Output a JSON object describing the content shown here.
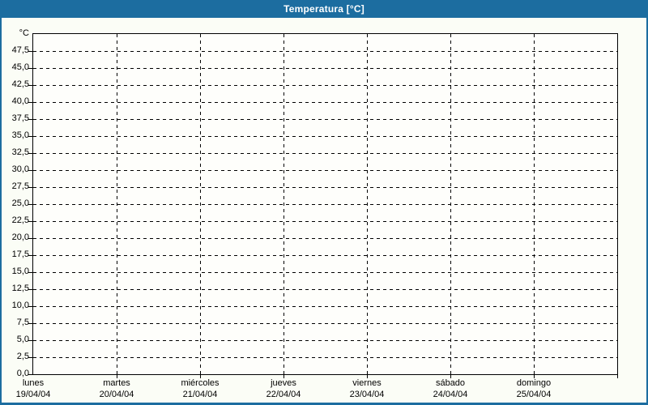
{
  "window": {
    "title": "Temperatura [°C]"
  },
  "colors": {
    "titlebar": "#1c6da0",
    "frame_border": "#1c6da0",
    "page_background": "#fbfdf6",
    "plot_background": "#fefefb",
    "grid": "#000000",
    "text": "#000000",
    "title_text": "#ffffff"
  },
  "chart_data": {
    "type": "line",
    "title": "Temperatura [°C]",
    "ylabel": "°C",
    "xlabel": "",
    "ylim": [
      0,
      50
    ],
    "ytick_step": 2.5,
    "grid": "dashed",
    "legend": "none",
    "series": [],
    "yticks": [
      {
        "value": 0,
        "label": "0,0"
      },
      {
        "value": 2.5,
        "label": "2,5"
      },
      {
        "value": 5,
        "label": "5,0"
      },
      {
        "value": 7.5,
        "label": "7,5"
      },
      {
        "value": 10,
        "label": "10,0"
      },
      {
        "value": 12.5,
        "label": "12,5"
      },
      {
        "value": 15,
        "label": "15,0"
      },
      {
        "value": 17.5,
        "label": "17,5"
      },
      {
        "value": 20,
        "label": "20,0"
      },
      {
        "value": 22.5,
        "label": "22,5"
      },
      {
        "value": 25,
        "label": "25,0"
      },
      {
        "value": 27.5,
        "label": "27,5"
      },
      {
        "value": 30,
        "label": "30,0"
      },
      {
        "value": 32.5,
        "label": "32,5"
      },
      {
        "value": 35,
        "label": "35,0"
      },
      {
        "value": 37.5,
        "label": "37,5"
      },
      {
        "value": 40,
        "label": "40,0"
      },
      {
        "value": 42.5,
        "label": "42,5"
      },
      {
        "value": 45,
        "label": "45,0"
      },
      {
        "value": 47.5,
        "label": "47,5"
      }
    ],
    "days": [
      {
        "name": "lunes",
        "date": "19/04/04"
      },
      {
        "name": "martes",
        "date": "20/04/04"
      },
      {
        "name": "miércoles",
        "date": "21/04/04"
      },
      {
        "name": "jueves",
        "date": "22/04/04"
      },
      {
        "name": "viernes",
        "date": "23/04/04"
      },
      {
        "name": "sábado",
        "date": "24/04/04"
      },
      {
        "name": "domingo",
        "date": "25/04/04"
      }
    ]
  }
}
